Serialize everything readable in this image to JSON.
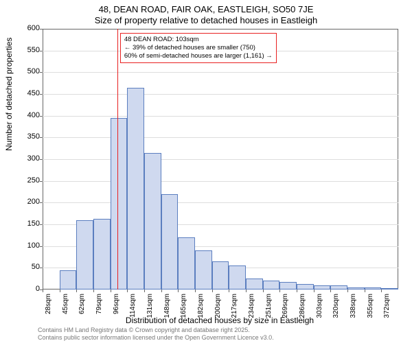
{
  "title_line1": "48, DEAN ROAD, FAIR OAK, EASTLEIGH, SO50 7JE",
  "title_line2": "Size of property relative to detached houses in Eastleigh",
  "yaxis_label": "Number of detached properties",
  "xaxis_label": "Distribution of detached houses by size in Eastleigh",
  "footer_line1": "Contains HM Land Registry data © Crown copyright and database right 2025.",
  "footer_line2": "Contains public sector information licensed under the Open Government Licence v3.0.",
  "annotation": {
    "line1": "48 DEAN ROAD: 103sqm",
    "line2": "← 39% of detached houses are smaller (750)",
    "line3": "60% of semi-detached houses are larger (1,161) →"
  },
  "chart": {
    "type": "histogram",
    "bar_fill": "#cfd9ef",
    "bar_stroke": "#5b7ebf",
    "grid_color": "#dddddd",
    "border_color": "#666666",
    "ref_color": "#e82020",
    "background": "#ffffff",
    "font_family": "Arial",
    "ylim": [
      0,
      600
    ],
    "ytick_step": 50,
    "bin_width_sqm": 17,
    "first_bin_start": 28,
    "yticks": [
      0,
      50,
      100,
      150,
      200,
      250,
      300,
      350,
      400,
      450,
      500,
      550,
      600
    ],
    "xticks": [
      "28sqm",
      "45sqm",
      "62sqm",
      "79sqm",
      "96sqm",
      "114sqm",
      "131sqm",
      "148sqm",
      "165sqm",
      "182sqm",
      "200sqm",
      "217sqm",
      "234sqm",
      "251sqm",
      "269sqm",
      "286sqm",
      "303sqm",
      "320sqm",
      "338sqm",
      "355sqm",
      "372sqm"
    ],
    "ref_value_sqm": 103,
    "values": [
      0,
      45,
      160,
      162,
      395,
      465,
      315,
      220,
      120,
      90,
      65,
      55,
      25,
      20,
      18,
      12,
      10,
      9,
      5,
      4,
      3
    ]
  }
}
